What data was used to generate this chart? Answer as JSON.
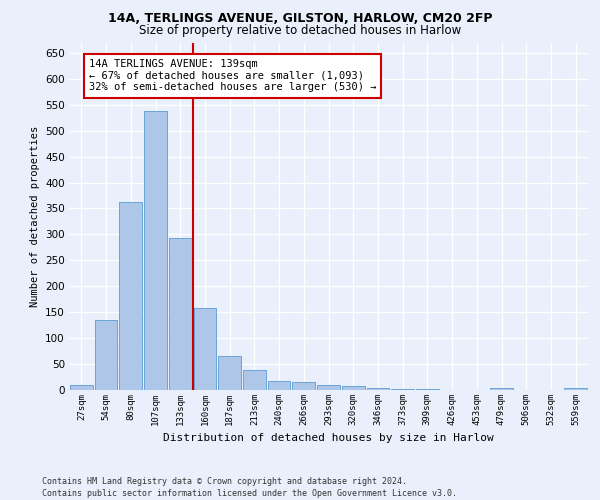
{
  "title1": "14A, TERLINGS AVENUE, GILSTON, HARLOW, CM20 2FP",
  "title2": "Size of property relative to detached houses in Harlow",
  "xlabel": "Distribution of detached houses by size in Harlow",
  "ylabel": "Number of detached properties",
  "categories": [
    "27sqm",
    "54sqm",
    "80sqm",
    "107sqm",
    "133sqm",
    "160sqm",
    "187sqm",
    "213sqm",
    "240sqm",
    "266sqm",
    "293sqm",
    "320sqm",
    "346sqm",
    "373sqm",
    "399sqm",
    "426sqm",
    "453sqm",
    "479sqm",
    "506sqm",
    "532sqm",
    "559sqm"
  ],
  "values": [
    10,
    135,
    362,
    537,
    293,
    158,
    65,
    38,
    17,
    15,
    10,
    8,
    3,
    2,
    2,
    0,
    0,
    3,
    0,
    0,
    3
  ],
  "bar_color": "#aec6e8",
  "bar_edge_color": "#5b9bd5",
  "annotation_line1": "14A TERLINGS AVENUE: 139sqm",
  "annotation_line2": "← 67% of detached houses are smaller (1,093)",
  "annotation_line3": "32% of semi-detached houses are larger (530) →",
  "vline_color": "#cc0000",
  "annotation_box_edge": "#cc0000",
  "ylim": [
    0,
    670
  ],
  "yticks": [
    0,
    50,
    100,
    150,
    200,
    250,
    300,
    350,
    400,
    450,
    500,
    550,
    600,
    650
  ],
  "footer1": "Contains HM Land Registry data © Crown copyright and database right 2024.",
  "footer2": "Contains public sector information licensed under the Open Government Licence v3.0.",
  "bg_color": "#eaf0fb",
  "plot_bg_color": "#eaf0fb"
}
